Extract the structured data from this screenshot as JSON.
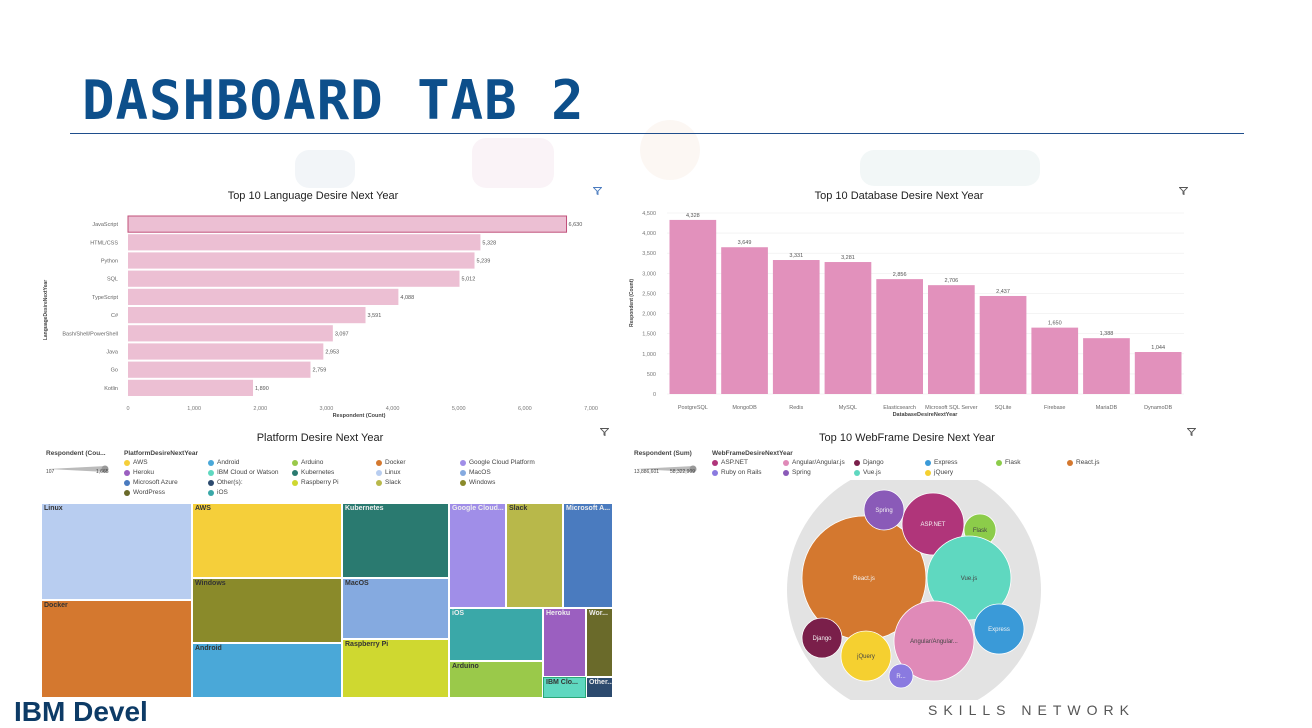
{
  "page": {
    "title": "DASHBOARD TAB 2",
    "footer_left": "IBM Devel",
    "footer_right": "SKILLS NETWORK"
  },
  "icons": {
    "filter": "filter-icon"
  },
  "colors": {
    "title": "#0d4f8b",
    "rule": "#1f4e8c",
    "bar_lang": "#ecbfd3",
    "bar_db": "#e291bc"
  },
  "language_chart": {
    "title": "Top 10 Language Desire Next Year",
    "chart_data": {
      "type": "bar",
      "orientation": "horizontal",
      "categories": [
        "JavaScript",
        "HTML/CSS",
        "Python",
        "SQL",
        "TypeScript",
        "C#",
        "Bash/Shell/PowerShell",
        "Java",
        "Go",
        "Kotlin"
      ],
      "values": [
        6630,
        5328,
        5239,
        5012,
        4088,
        3591,
        3097,
        2953,
        2759,
        1890
      ],
      "value_labels": [
        "6,630",
        "5,328",
        "5,239",
        "5,012",
        "4,088",
        "3,591",
        "3,097",
        "2,953",
        "2,759",
        "1,890"
      ],
      "xlabel": "Respondent (Count)",
      "ylabel": "LanguageDesireNextYear",
      "xlim": [
        0,
        7000
      ],
      "x_ticks": [
        "0",
        "1,000",
        "2,000",
        "3,000",
        "4,000",
        "5,000",
        "6,000",
        "7,000"
      ]
    }
  },
  "database_chart": {
    "title": "Top 10 Database Desire Next Year",
    "chart_data": {
      "type": "bar",
      "categories": [
        "PostgreSQL",
        "MongoDB",
        "Redis",
        "MySQL",
        "Elasticsearch",
        "Microsoft SQL Server",
        "SQLite",
        "Firebase",
        "MariaDB",
        "DynamoDB"
      ],
      "values": [
        4328,
        3649,
        3331,
        3281,
        2856,
        2706,
        2437,
        1650,
        1388,
        1044
      ],
      "value_labels": [
        "4,328",
        "3,649",
        "3,331",
        "3,281",
        "2,856",
        "2,706",
        "2,437",
        "1,650",
        "1,388",
        "1,044"
      ],
      "xlabel": "DatabaseDesireNextYear",
      "ylabel": "Respondent (Count)",
      "ylim": [
        0,
        4500
      ],
      "y_ticks": [
        "0",
        "500",
        "1,000",
        "1,500",
        "2,000",
        "2,500",
        "3,000",
        "3,500",
        "4,000",
        "4,500"
      ]
    }
  },
  "platform_chart": {
    "title": "Platform Desire Next Year",
    "size_legend": {
      "label": "Respondent (Cou...",
      "min": "107",
      "max": "1,665"
    },
    "color_legend_title": "PlatformDesireNextYear",
    "legend_items": [
      {
        "name": "AWS",
        "color": "#f5cf3a"
      },
      {
        "name": "Android",
        "color": "#4aa8d8"
      },
      {
        "name": "Arduino",
        "color": "#9ac94a"
      },
      {
        "name": "Docker",
        "color": "#d4782f"
      },
      {
        "name": "Google Cloud Platform",
        "color": "#a08ee8"
      },
      {
        "name": "Heroku",
        "color": "#9b5fc0"
      },
      {
        "name": "IBM Cloud or Watson",
        "color": "#5fd8c0"
      },
      {
        "name": "Kubernetes",
        "color": "#2a7a70"
      },
      {
        "name": "Linux",
        "color": "#b8cdf0"
      },
      {
        "name": "MacOS",
        "color": "#85aae0"
      },
      {
        "name": "Microsoft Azure",
        "color": "#4a7bbf"
      },
      {
        "name": "Other(s):",
        "color": "#2c4a6e"
      },
      {
        "name": "Raspberry Pi",
        "color": "#cfd830"
      },
      {
        "name": "Slack",
        "color": "#b8b84a"
      },
      {
        "name": "Windows",
        "color": "#8a8a2a"
      },
      {
        "name": "WordPress",
        "color": "#6a6a2a"
      },
      {
        "name": "iOS",
        "color": "#3aa8a8"
      }
    ],
    "chart_data": {
      "type": "treemap",
      "cells": [
        {
          "name": "Linux",
          "color": "#b8cdf0"
        },
        {
          "name": "Docker",
          "color": "#d4782f"
        },
        {
          "name": "AWS",
          "color": "#f5cf3a"
        },
        {
          "name": "Windows",
          "color": "#8a8a2a"
        },
        {
          "name": "Android",
          "color": "#4aa8d8"
        },
        {
          "name": "Kubernetes",
          "color": "#2a7a70"
        },
        {
          "name": "MacOS",
          "color": "#85aae0"
        },
        {
          "name": "Raspberry Pi",
          "color": "#cfd830"
        },
        {
          "name": "Google Cloud...",
          "color": "#a08ee8"
        },
        {
          "name": "Slack",
          "color": "#b8b84a"
        },
        {
          "name": "Microsoft A...",
          "color": "#4a7bbf"
        },
        {
          "name": "iOS",
          "color": "#3aa8a8"
        },
        {
          "name": "Arduino",
          "color": "#9ac94a"
        },
        {
          "name": "Heroku",
          "color": "#9b5fc0"
        },
        {
          "name": "Wor...",
          "color": "#6a6a2a"
        },
        {
          "name": "IBM Clo...",
          "color": "#5fd8c0"
        },
        {
          "name": "Other...",
          "color": "#2c4a6e"
        }
      ]
    }
  },
  "webframe_chart": {
    "title": "Top 10 WebFrame Desire Next Year",
    "size_legend": {
      "label": "Respondent (Sum)",
      "min": "13,886,601",
      "max": "58,322,909"
    },
    "color_legend_title": "WebFrameDesireNextYear",
    "legend_items": [
      {
        "name": "ASP.NET",
        "color": "#b0357a"
      },
      {
        "name": "Angular/Angular.js",
        "color": "#e08ab8"
      },
      {
        "name": "Django",
        "color": "#7a1f4a"
      },
      {
        "name": "Express",
        "color": "#3a9ad8"
      },
      {
        "name": "Flask",
        "color": "#8ccc4a"
      },
      {
        "name": "React.js",
        "color": "#d4782f"
      },
      {
        "name": "Ruby on Rails",
        "color": "#8a7ae0"
      },
      {
        "name": "Spring",
        "color": "#8a5ab8"
      },
      {
        "name": "Vue.js",
        "color": "#5fd8c0"
      },
      {
        "name": "jQuery",
        "color": "#f5d030"
      }
    ],
    "chart_data": {
      "type": "packed_bubble",
      "bubbles": [
        {
          "name": "React.js",
          "color": "#d4782f"
        },
        {
          "name": "ASP.NET",
          "color": "#b0357a"
        },
        {
          "name": "Spring",
          "color": "#8a5ab8"
        },
        {
          "name": "Flask",
          "color": "#8ccc4a"
        },
        {
          "name": "Vue.js",
          "color": "#5fd8c0"
        },
        {
          "name": "Express",
          "color": "#3a9ad8"
        },
        {
          "name": "Angular/Angular...",
          "color": "#e08ab8"
        },
        {
          "name": "jQuery",
          "color": "#f5d030"
        },
        {
          "name": "Django",
          "color": "#7a1f4a"
        },
        {
          "name": "R...",
          "color": "#8a7ae0"
        }
      ]
    }
  }
}
